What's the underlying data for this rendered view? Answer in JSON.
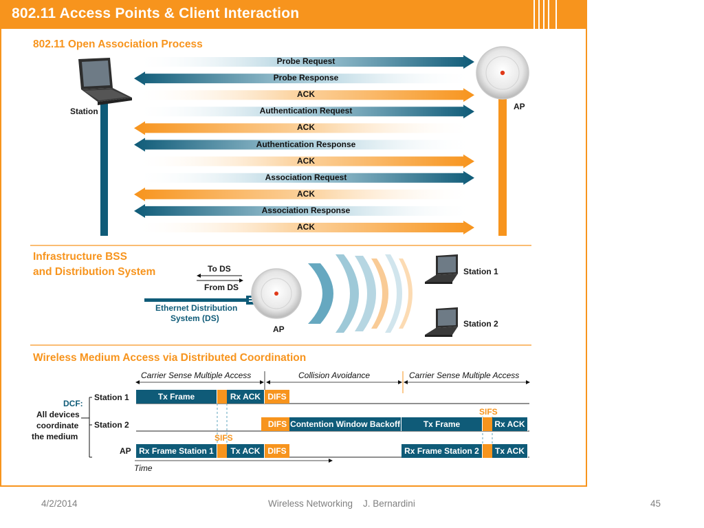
{
  "slide": {
    "title": "802.11 Access Points & Client Interaction",
    "footer": {
      "date": "4/2/2014",
      "center": "Wireless Networking    J. Bernardini",
      "page": "45"
    }
  },
  "association": {
    "title": "802.11 Open Association Process",
    "station_label": "Station",
    "ap_label": "AP",
    "messages": [
      {
        "label": "Probe Request",
        "direction": "to-ap",
        "color": "#0f5b78"
      },
      {
        "label": "Probe Response",
        "direction": "to-station",
        "color": "#0f5b78"
      },
      {
        "label": "ACK",
        "direction": "to-ap",
        "color": "#f7941d"
      },
      {
        "label": "Authentication Request",
        "direction": "to-ap",
        "color": "#0f5b78"
      },
      {
        "label": "ACK",
        "direction": "to-station",
        "color": "#f7941d"
      },
      {
        "label": "Authentication Response",
        "direction": "to-station",
        "color": "#0f5b78"
      },
      {
        "label": "ACK",
        "direction": "to-ap",
        "color": "#f7941d"
      },
      {
        "label": "Association Request",
        "direction": "to-ap",
        "color": "#0f5b78"
      },
      {
        "label": "ACK",
        "direction": "to-station",
        "color": "#f7941d"
      },
      {
        "label": "Association Response",
        "direction": "to-station",
        "color": "#0f5b78"
      },
      {
        "label": "ACK",
        "direction": "to-ap",
        "color": "#f7941d"
      }
    ]
  },
  "infrastructure": {
    "title_line1": "Infrastructure BSS",
    "title_line2": "and Distribution System",
    "to_ds": "To DS",
    "from_ds": "From DS",
    "ethernet_line1": "Ethernet Distribution",
    "ethernet_line2": "System (DS)",
    "ap_label": "AP",
    "station1": "Station 1",
    "station2": "Station 2"
  },
  "dcf": {
    "title": "Wireless Medium Access via Distributed Coordination",
    "phases": [
      "Carrier Sense Multiple Access",
      "Collision Avoidance",
      "Carrier Sense Multiple Access"
    ],
    "dcf_label": "DCF:",
    "desc_line1": "All devices",
    "desc_line2": "coordinate",
    "desc_line3": "the medium",
    "rows": [
      {
        "name": "Station 1",
        "segments": [
          {
            "label": "Tx Frame",
            "type": "frame"
          },
          {
            "label": "",
            "type": "sifs"
          },
          {
            "label": "Rx ACK",
            "type": "frame"
          },
          {
            "label": "DIFS",
            "type": "difs"
          }
        ]
      },
      {
        "name": "Station 2",
        "segments": [
          {
            "label": "",
            "type": "difs"
          },
          {
            "label": "DIFS",
            "type": "difs"
          },
          {
            "label": "Contention Window Backoff",
            "type": "frame"
          },
          {
            "label": "Tx Frame",
            "type": "frame"
          },
          {
            "label": "",
            "type": "sifs"
          },
          {
            "label": "Rx ACK",
            "type": "frame"
          }
        ]
      },
      {
        "name": "AP",
        "segments": [
          {
            "label": "Rx Frame Station 1",
            "type": "frame"
          },
          {
            "label": "",
            "type": "sifs"
          },
          {
            "label": "Tx ACK",
            "type": "frame"
          },
          {
            "label": "DIFS",
            "type": "difs"
          },
          {
            "label": "Rx Frame Station 2",
            "type": "frame"
          },
          {
            "label": "",
            "type": "sifs"
          },
          {
            "label": "Tx ACK",
            "type": "frame"
          }
        ]
      }
    ],
    "sifs_label": "SIFS",
    "time_label": "Time"
  },
  "colors": {
    "orange": "#f7941d",
    "blue": "#0f5b78",
    "light_blue": "#5ea3bd"
  }
}
